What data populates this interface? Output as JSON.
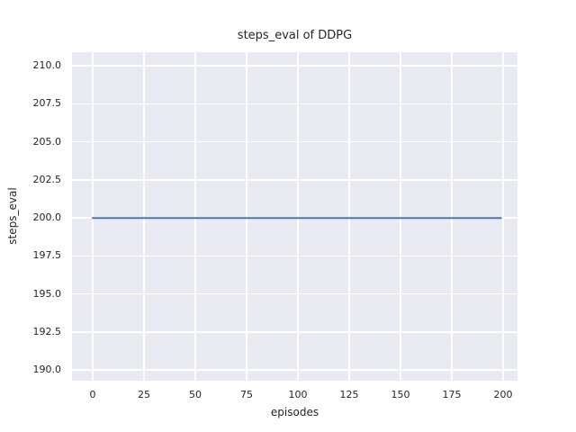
{
  "chart_data": {
    "type": "line",
    "title": "steps_eval of DDPG",
    "xlabel": "episodes",
    "ylabel": "steps_eval",
    "x_ticks": [
      0,
      25,
      50,
      75,
      100,
      125,
      150,
      175,
      200
    ],
    "x_tick_labels": [
      "0",
      "25",
      "50",
      "75",
      "100",
      "125",
      "150",
      "175",
      "200"
    ],
    "y_ticks": [
      190.0,
      192.5,
      195.0,
      197.5,
      200.0,
      202.5,
      205.0,
      207.5,
      210.0
    ],
    "y_tick_labels": [
      "190.0",
      "192.5",
      "195.0",
      "197.5",
      "200.0",
      "202.5",
      "205.0",
      "207.5",
      "210.0"
    ],
    "xlim": [
      -10.1,
      207.0
    ],
    "ylim": [
      189.3,
      210.9
    ],
    "grid": true,
    "legend": "none",
    "series": [
      {
        "name": "steps_eval",
        "color": "#4c72b0",
        "x": [
          0,
          199
        ],
        "y": [
          200.0,
          200.0
        ],
        "note": "constant value 200 for all 200 evaluation episodes"
      }
    ]
  },
  "colors": {
    "figure_bg": "#ffffff",
    "plot_bg": "#eaeaf2",
    "grid": "#ffffff",
    "text": "#262626",
    "line": "#4c72b0"
  }
}
